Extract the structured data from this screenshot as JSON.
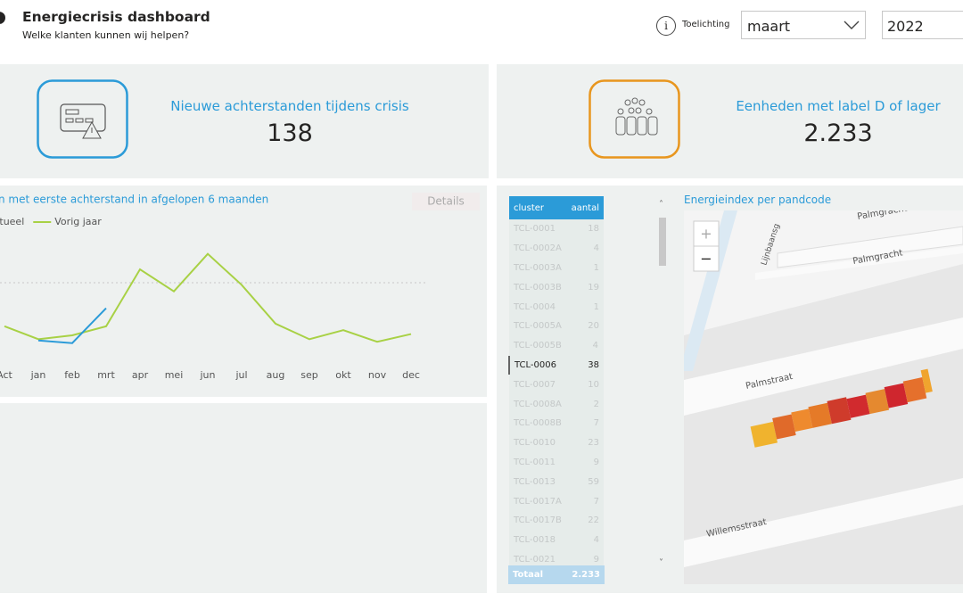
{
  "header": {
    "title": "Energiecrisis dashboard",
    "subtitle": "Welke klanten kunnen wij helpen?",
    "info": "Toelichting",
    "month": "maart",
    "year": "2022"
  },
  "kpis": [
    {
      "label": "Nieuwe achterstanden tijdens crisis",
      "value": "138"
    },
    {
      "label": "Eenheden met label D of lager",
      "value": "2.233"
    }
  ],
  "chart_data": {
    "type": "line",
    "title": "n met eerste achterstand in afgelopen 6 maanden",
    "button": "Details",
    "categories": [
      "Act",
      "jan",
      "feb",
      "mrt",
      "apr",
      "mei",
      "jun",
      "jul",
      "aug",
      "sep",
      "okt",
      "nov",
      "dec"
    ],
    "ylim": [
      0,
      100
    ],
    "series": [
      {
        "name": "Actueel",
        "color": "#2b9bd8",
        "values": [
          null,
          16,
          14,
          41,
          null,
          null,
          null,
          null,
          null,
          null,
          null,
          null,
          null
        ]
      },
      {
        "name": "Vorig jaar",
        "color": "#a8d145",
        "values": [
          27,
          17,
          20,
          27,
          71,
          54,
          83,
          59,
          29,
          17,
          24,
          15,
          21
        ]
      }
    ]
  },
  "table": {
    "headers": [
      "cluster",
      "aantal"
    ],
    "rows": [
      [
        "TCL-0001",
        18
      ],
      [
        "TCL-0002A",
        4
      ],
      [
        "TCL-0003A",
        1
      ],
      [
        "TCL-0003B",
        19
      ],
      [
        "TCL-0004",
        1
      ],
      [
        "TCL-0005A",
        20
      ],
      [
        "TCL-0005B",
        4
      ],
      [
        "TCL-0006",
        38
      ],
      [
        "TCL-0007",
        10
      ],
      [
        "TCL-0008A",
        2
      ],
      [
        "TCL-0008B",
        7
      ],
      [
        "TCL-0010",
        23
      ],
      [
        "TCL-0011",
        9
      ],
      [
        "TCL-0013",
        59
      ],
      [
        "TCL-0017A",
        7
      ],
      [
        "TCL-0017B",
        22
      ],
      [
        "TCL-0018",
        4
      ],
      [
        "TCL-0021",
        9
      ]
    ],
    "total": [
      "Totaal",
      "2.233"
    ]
  },
  "map": {
    "title": "Energieindex per pandcode",
    "zoom_in": "+",
    "zoom_out": "−",
    "streets": [
      "Palmgracht",
      "Palmgracht",
      "Lijnbaansg",
      "Palmstraat",
      "Willemsstraat"
    ]
  }
}
